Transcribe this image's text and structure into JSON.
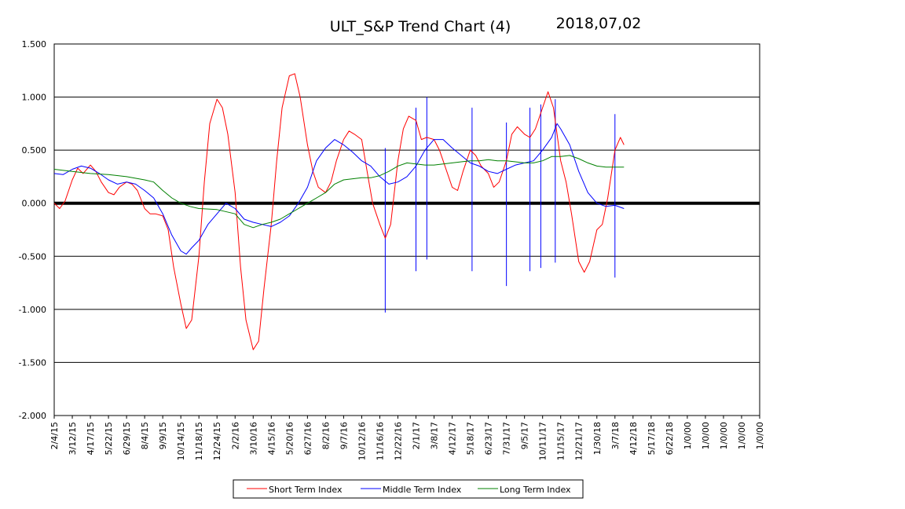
{
  "chart_data": {
    "type": "line",
    "title": "ULT_S&P  Trend Chart (4)",
    "date_label": "2018,07,02",
    "xlabel": "",
    "ylabel": "",
    "ylim": [
      -2.0,
      1.5
    ],
    "y_ticks": [
      "1.500",
      "1.000",
      "0.500",
      "0.000",
      "-0.500",
      "-1.000",
      "-1.500",
      "-2.000"
    ],
    "x_ticks": [
      "2/4/15",
      "3/12/15",
      "4/17/15",
      "5/22/15",
      "6/29/15",
      "8/4/15",
      "9/9/15",
      "10/14/15",
      "11/18/15",
      "12/24/15",
      "2/2/16",
      "3/10/16",
      "4/15/16",
      "5/20/16",
      "6/27/16",
      "8/2/16",
      "9/7/16",
      "10/12/16",
      "11/16/16",
      "12/22/16",
      "2/1/17",
      "3/8/17",
      "4/12/17",
      "5/18/17",
      "6/23/17",
      "7/31/17",
      "9/5/17",
      "10/11/17",
      "11/15/17",
      "12/21/17",
      "1/30/18",
      "3/7/18",
      "4/12/18",
      "5/17/18",
      "6/22/18",
      "1/0/00",
      "1/0/00",
      "1/0/00",
      "1/0/00",
      "1/0/00"
    ],
    "grid": true,
    "zero_line_bold": true,
    "legend_position": "bottom-center",
    "series": [
      {
        "name": "Short Term Index",
        "color": "#ff0000",
        "values": [
          [
            0,
            0.0
          ],
          [
            0.3,
            -0.05
          ],
          [
            0.6,
            0.02
          ],
          [
            1,
            0.22
          ],
          [
            1.3,
            0.33
          ],
          [
            1.6,
            0.28
          ],
          [
            2,
            0.36
          ],
          [
            2.3,
            0.3
          ],
          [
            2.6,
            0.2
          ],
          [
            3,
            0.1
          ],
          [
            3.3,
            0.08
          ],
          [
            3.6,
            0.15
          ],
          [
            4,
            0.2
          ],
          [
            4.3,
            0.18
          ],
          [
            4.6,
            0.12
          ],
          [
            5,
            -0.05
          ],
          [
            5.3,
            -0.1
          ],
          [
            5.6,
            -0.1
          ],
          [
            6,
            -0.12
          ],
          [
            6.3,
            -0.25
          ],
          [
            6.6,
            -0.6
          ],
          [
            7,
            -0.95
          ],
          [
            7.3,
            -1.18
          ],
          [
            7.6,
            -1.1
          ],
          [
            8,
            -0.5
          ],
          [
            8.3,
            0.2
          ],
          [
            8.6,
            0.75
          ],
          [
            9,
            0.98
          ],
          [
            9.3,
            0.9
          ],
          [
            9.6,
            0.65
          ],
          [
            10,
            0.1
          ],
          [
            10.3,
            -0.6
          ],
          [
            10.6,
            -1.1
          ],
          [
            11,
            -1.38
          ],
          [
            11.3,
            -1.3
          ],
          [
            11.6,
            -0.8
          ],
          [
            12,
            -0.2
          ],
          [
            12.3,
            0.4
          ],
          [
            12.6,
            0.9
          ],
          [
            13,
            1.2
          ],
          [
            13.3,
            1.22
          ],
          [
            13.6,
            1.0
          ],
          [
            14,
            0.55
          ],
          [
            14.3,
            0.3
          ],
          [
            14.6,
            0.15
          ],
          [
            15,
            0.1
          ],
          [
            15.3,
            0.2
          ],
          [
            15.6,
            0.4
          ],
          [
            16,
            0.6
          ],
          [
            16.3,
            0.68
          ],
          [
            16.6,
            0.65
          ],
          [
            17,
            0.6
          ],
          [
            17.3,
            0.3
          ],
          [
            17.6,
            0.0
          ],
          [
            18,
            -0.2
          ],
          [
            18.3,
            -0.33
          ],
          [
            18.6,
            -0.2
          ],
          [
            19,
            0.4
          ],
          [
            19.3,
            0.7
          ],
          [
            19.6,
            0.82
          ],
          [
            20,
            0.78
          ],
          [
            20.3,
            0.6
          ],
          [
            20.6,
            0.62
          ],
          [
            21,
            0.6
          ],
          [
            21.3,
            0.5
          ],
          [
            21.6,
            0.35
          ],
          [
            22,
            0.15
          ],
          [
            22.3,
            0.12
          ],
          [
            22.6,
            0.3
          ],
          [
            23,
            0.5
          ],
          [
            23.3,
            0.45
          ],
          [
            23.6,
            0.35
          ],
          [
            24,
            0.28
          ],
          [
            24.3,
            0.15
          ],
          [
            24.6,
            0.2
          ],
          [
            25,
            0.4
          ],
          [
            25.3,
            0.65
          ],
          [
            25.6,
            0.72
          ],
          [
            26,
            0.65
          ],
          [
            26.3,
            0.62
          ],
          [
            26.6,
            0.7
          ],
          [
            27,
            0.9
          ],
          [
            27.3,
            1.05
          ],
          [
            27.6,
            0.9
          ],
          [
            28,
            0.4
          ],
          [
            28.3,
            0.2
          ],
          [
            28.6,
            -0.1
          ],
          [
            29,
            -0.55
          ],
          [
            29.3,
            -0.65
          ],
          [
            29.6,
            -0.55
          ],
          [
            30,
            -0.25
          ],
          [
            30.3,
            -0.2
          ],
          [
            30.6,
            0.05
          ],
          [
            31,
            0.5
          ],
          [
            31.3,
            0.62
          ],
          [
            31.5,
            0.55
          ]
        ]
      },
      {
        "name": "Middle Term Index",
        "color": "#0000ff",
        "values": [
          [
            0,
            0.28
          ],
          [
            0.5,
            0.27
          ],
          [
            1,
            0.32
          ],
          [
            1.5,
            0.35
          ],
          [
            2,
            0.33
          ],
          [
            2.5,
            0.28
          ],
          [
            3,
            0.22
          ],
          [
            3.5,
            0.18
          ],
          [
            4,
            0.2
          ],
          [
            4.5,
            0.18
          ],
          [
            5,
            0.12
          ],
          [
            5.5,
            0.05
          ],
          [
            6,
            -0.1
          ],
          [
            6.5,
            -0.3
          ],
          [
            7,
            -0.45
          ],
          [
            7.3,
            -0.48
          ],
          [
            7.6,
            -0.42
          ],
          [
            8,
            -0.35
          ],
          [
            8.5,
            -0.2
          ],
          [
            9,
            -0.1
          ],
          [
            9.5,
            0.0
          ],
          [
            10,
            -0.05
          ],
          [
            10.5,
            -0.15
          ],
          [
            11,
            -0.18
          ],
          [
            11.5,
            -0.2
          ],
          [
            12,
            -0.22
          ],
          [
            12.5,
            -0.18
          ],
          [
            13,
            -0.12
          ],
          [
            13.5,
            0.0
          ],
          [
            14,
            0.15
          ],
          [
            14.5,
            0.4
          ],
          [
            15,
            0.52
          ],
          [
            15.5,
            0.6
          ],
          [
            16,
            0.55
          ],
          [
            16.5,
            0.48
          ],
          [
            17,
            0.4
          ],
          [
            17.5,
            0.35
          ],
          [
            18,
            0.25
          ],
          [
            18.5,
            0.18
          ],
          [
            19,
            0.2
          ],
          [
            19.5,
            0.25
          ],
          [
            20,
            0.35
          ],
          [
            20.5,
            0.5
          ],
          [
            21,
            0.6
          ],
          [
            21.5,
            0.6
          ],
          [
            22,
            0.52
          ],
          [
            22.5,
            0.45
          ],
          [
            23,
            0.38
          ],
          [
            23.5,
            0.35
          ],
          [
            24,
            0.3
          ],
          [
            24.5,
            0.28
          ],
          [
            25,
            0.32
          ],
          [
            25.5,
            0.36
          ],
          [
            26,
            0.38
          ],
          [
            26.5,
            0.4
          ],
          [
            27,
            0.5
          ],
          [
            27.5,
            0.62
          ],
          [
            27.8,
            0.75
          ],
          [
            28,
            0.7
          ],
          [
            28.5,
            0.55
          ],
          [
            29,
            0.3
          ],
          [
            29.5,
            0.1
          ],
          [
            30,
            0.0
          ],
          [
            30.5,
            -0.03
          ],
          [
            31,
            -0.02
          ],
          [
            31.5,
            -0.05
          ]
        ]
      },
      {
        "name": "Long Term Index",
        "color": "#008000",
        "values": [
          [
            0,
            0.32
          ],
          [
            1,
            0.3
          ],
          [
            2,
            0.28
          ],
          [
            3,
            0.27
          ],
          [
            4,
            0.25
          ],
          [
            5,
            0.22
          ],
          [
            5.5,
            0.2
          ],
          [
            6,
            0.12
          ],
          [
            6.5,
            0.05
          ],
          [
            7,
            0.0
          ],
          [
            7.5,
            -0.03
          ],
          [
            8,
            -0.05
          ],
          [
            9,
            -0.06
          ],
          [
            10,
            -0.1
          ],
          [
            10.5,
            -0.2
          ],
          [
            11,
            -0.23
          ],
          [
            11.5,
            -0.2
          ],
          [
            12,
            -0.18
          ],
          [
            12.5,
            -0.15
          ],
          [
            13,
            -0.1
          ],
          [
            13.5,
            -0.05
          ],
          [
            14,
            0.0
          ],
          [
            14.5,
            0.05
          ],
          [
            15,
            0.1
          ],
          [
            15.5,
            0.18
          ],
          [
            16,
            0.22
          ],
          [
            16.5,
            0.23
          ],
          [
            17,
            0.24
          ],
          [
            17.5,
            0.24
          ],
          [
            18,
            0.26
          ],
          [
            18.5,
            0.3
          ],
          [
            19,
            0.35
          ],
          [
            19.5,
            0.38
          ],
          [
            20,
            0.37
          ],
          [
            20.5,
            0.36
          ],
          [
            21,
            0.36
          ],
          [
            21.5,
            0.37
          ],
          [
            22,
            0.38
          ],
          [
            22.5,
            0.39
          ],
          [
            23,
            0.4
          ],
          [
            23.5,
            0.4
          ],
          [
            24,
            0.41
          ],
          [
            24.5,
            0.4
          ],
          [
            25,
            0.4
          ],
          [
            25.5,
            0.39
          ],
          [
            26,
            0.38
          ],
          [
            26.5,
            0.38
          ],
          [
            27,
            0.4
          ],
          [
            27.5,
            0.44
          ],
          [
            28,
            0.44
          ],
          [
            28.5,
            0.45
          ],
          [
            29,
            0.42
          ],
          [
            29.5,
            0.38
          ],
          [
            30,
            0.35
          ],
          [
            30.5,
            0.34
          ],
          [
            31,
            0.34
          ],
          [
            31.5,
            0.34
          ]
        ]
      }
    ],
    "vertical_markers": [
      {
        "x": 18.3,
        "y1": -1.03,
        "y2": 0.52
      },
      {
        "x": 20.0,
        "y1": -0.64,
        "y2": 0.9
      },
      {
        "x": 20.6,
        "y1": -0.53,
        "y2": 1.0
      },
      {
        "x": 23.1,
        "y1": -0.64,
        "y2": 0.9
      },
      {
        "x": 25.0,
        "y1": -0.78,
        "y2": 0.76
      },
      {
        "x": 26.3,
        "y1": -0.64,
        "y2": 0.9
      },
      {
        "x": 26.9,
        "y1": -0.61,
        "y2": 0.93
      },
      {
        "x": 27.7,
        "y1": -0.56,
        "y2": 0.98
      },
      {
        "x": 31.0,
        "y1": -0.7,
        "y2": 0.84
      }
    ]
  }
}
